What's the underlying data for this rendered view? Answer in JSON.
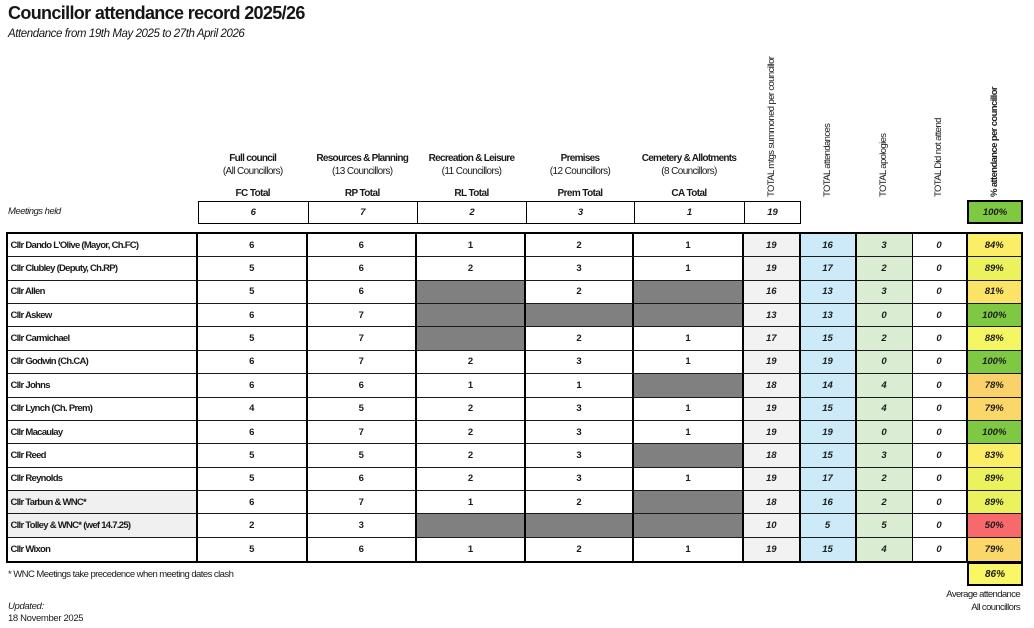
{
  "title": "Councillor attendance record 2025/26",
  "subtitle": "Attendance from 19th May 2025 to 27th April 2026",
  "colors": {
    "blocked_cell": "#808080",
    "total_mtgs_col": "#f2f2f2",
    "attendances_col": "#cdeaf8",
    "apologies_col": "#daecd2",
    "dna_col": "#ffffff",
    "highlight_name_row": "#f0f0f0",
    "pct_green": "#7ec842",
    "pct_red": "#f8696b"
  },
  "committees": [
    {
      "name": "Full council",
      "sub": "(All Councillors)",
      "total_label": "FC Total",
      "meetings": "6"
    },
    {
      "name": "Resources & Planning",
      "sub": "(13 Councillors)",
      "total_label": "RP Total",
      "meetings": "7"
    },
    {
      "name": "Recreation & Leisure",
      "sub": "(11 Councillors)",
      "total_label": "RL Total",
      "meetings": "2"
    },
    {
      "name": "Premises",
      "sub": "(12 Councillors)",
      "total_label": "Prem Total",
      "meetings": "3"
    },
    {
      "name": "Cemetery & Allotments",
      "sub": "(8 Councillors)",
      "total_label": "CA Total",
      "meetings": "1"
    }
  ],
  "vertical_headers": [
    "TOTAL mtgs summoned per councillor",
    "TOTAL attendances",
    "TOTAL apologies",
    "TOTAL Did not attend",
    "% attendance per councillor"
  ],
  "meetings_held": {
    "label": "Meetings held",
    "total": "19",
    "percent": "100%",
    "percent_color": "#7ec842"
  },
  "rows": [
    {
      "name": "Cllr Dando L'Olive (Mayor, Ch.FC)",
      "name_bg": "#ffffff",
      "fc": "6",
      "rp": "6",
      "rl": "1",
      "prem": "2",
      "ca": "1",
      "total": "19",
      "attendances": "16",
      "apologies": "3",
      "dna": "0",
      "pct": "84%",
      "pct_color": "#fbee66"
    },
    {
      "name": "Cllr Clubley (Deputy, Ch.RP)",
      "name_bg": "#ffffff",
      "fc": "5",
      "rp": "6",
      "rl": "2",
      "prem": "3",
      "ca": "1",
      "total": "19",
      "attendances": "17",
      "apologies": "2",
      "dna": "0",
      "pct": "89%",
      "pct_color": "#ebf25e"
    },
    {
      "name": "Cllr Allen",
      "name_bg": "#ffffff",
      "fc": "5",
      "rp": "6",
      "rl": null,
      "prem": "2",
      "ca": null,
      "total": "16",
      "attendances": "13",
      "apologies": "3",
      "dna": "0",
      "pct": "81%",
      "pct_color": "#fbe465"
    },
    {
      "name": "Cllr Askew",
      "name_bg": "#ffffff",
      "fc": "6",
      "rp": "7",
      "rl": null,
      "prem": null,
      "ca": null,
      "total": "13",
      "attendances": "13",
      "apologies": "0",
      "dna": "0",
      "pct": "100%",
      "pct_color": "#7ec842"
    },
    {
      "name": "Cllr Carmichael",
      "name_bg": "#ffffff",
      "fc": "5",
      "rp": "7",
      "rl": null,
      "prem": "2",
      "ca": "1",
      "total": "17",
      "attendances": "15",
      "apologies": "2",
      "dna": "0",
      "pct": "88%",
      "pct_color": "#f4f663"
    },
    {
      "name": "Cllr Godwin (Ch.CA)",
      "name_bg": "#ffffff",
      "fc": "6",
      "rp": "7",
      "rl": "2",
      "prem": "3",
      "ca": "1",
      "total": "19",
      "attendances": "19",
      "apologies": "0",
      "dna": "0",
      "pct": "100%",
      "pct_color": "#7ec842"
    },
    {
      "name": "Cllr Johns",
      "name_bg": "#ffffff",
      "fc": "6",
      "rp": "6",
      "rl": "1",
      "prem": "1",
      "ca": null,
      "total": "18",
      "attendances": "14",
      "apologies": "4",
      "dna": "0",
      "pct": "78%",
      "pct_color": "#fbd269"
    },
    {
      "name": "Cllr Lynch (Ch. Prem)",
      "name_bg": "#ffffff",
      "fc": "4",
      "rp": "5",
      "rl": "2",
      "prem": "3",
      "ca": "1",
      "total": "19",
      "attendances": "15",
      "apologies": "4",
      "dna": "0",
      "pct": "79%",
      "pct_color": "#fbd76a"
    },
    {
      "name": "Cllr Macaulay",
      "name_bg": "#ffffff",
      "fc": "6",
      "rp": "7",
      "rl": "2",
      "prem": "3",
      "ca": "1",
      "total": "19",
      "attendances": "19",
      "apologies": "0",
      "dna": "0",
      "pct": "100%",
      "pct_color": "#7ec842"
    },
    {
      "name": "Cllr Reed",
      "name_bg": "#ffffff",
      "fc": "5",
      "rp": "5",
      "rl": "2",
      "prem": "3",
      "ca": null,
      "total": "18",
      "attendances": "15",
      "apologies": "3",
      "dna": "0",
      "pct": "83%",
      "pct_color": "#fced66"
    },
    {
      "name": "Cllr Reynolds",
      "name_bg": "#ffffff",
      "fc": "5",
      "rp": "6",
      "rl": "2",
      "prem": "3",
      "ca": "1",
      "total": "19",
      "attendances": "17",
      "apologies": "2",
      "dna": "0",
      "pct": "89%",
      "pct_color": "#ebf25e"
    },
    {
      "name": "Cllr Tarbun & WNC*",
      "name_bg": "#f0f0f0",
      "fc": "6",
      "rp": "7",
      "rl": "1",
      "prem": "2",
      "ca": null,
      "total": "18",
      "attendances": "16",
      "apologies": "2",
      "dna": "0",
      "pct": "89%",
      "pct_color": "#ebf25e"
    },
    {
      "name": "Cllr Tolley & WNC* (wef 14.7.25)",
      "name_bg": "#f0f0f0",
      "fc": "2",
      "rp": "3",
      "rl": null,
      "prem": null,
      "ca": null,
      "total": "10",
      "attendances": "5",
      "apologies": "5",
      "dna": "0",
      "pct": "50%",
      "pct_color": "#f8696b"
    },
    {
      "name": "Cllr Wixon",
      "name_bg": "#ffffff",
      "fc": "5",
      "rp": "6",
      "rl": "1",
      "prem": "2",
      "ca": "1",
      "total": "19",
      "attendances": "15",
      "apologies": "4",
      "dna": "0",
      "pct": "79%",
      "pct_color": "#fbd76a"
    }
  ],
  "footnote": "* WNC Meetings take precedence when meeting dates clash",
  "average": {
    "value": "86%",
    "color": "#faf766",
    "label1": "Average attendance",
    "label2": "All councillors"
  },
  "updated": {
    "label": "Updated:",
    "date": "18 November 2025"
  }
}
